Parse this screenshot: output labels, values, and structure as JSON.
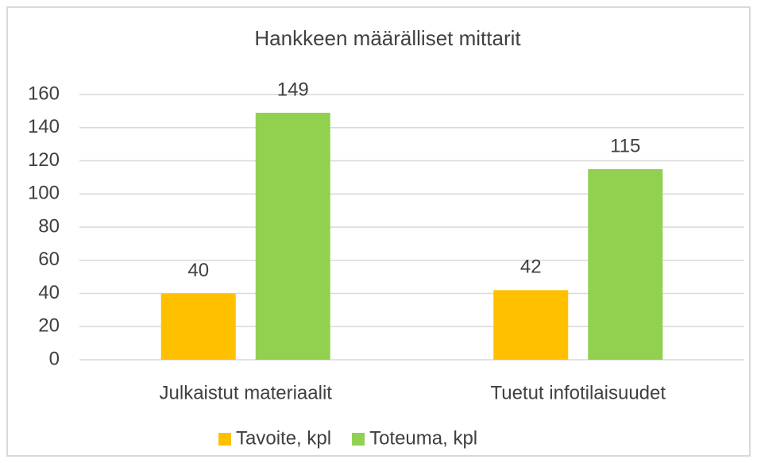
{
  "chart_data": {
    "type": "bar",
    "title": "Hankkeen määrälliset mittarit",
    "categories": [
      "Julkaistut materiaalit",
      "Tuetut infotilaisuudet"
    ],
    "series": [
      {
        "name": "Tavoite, kpl",
        "color": "#FFC000",
        "values": [
          40,
          42
        ]
      },
      {
        "name": "Toteuma, kpl",
        "color": "#92D050",
        "values": [
          149,
          115
        ]
      }
    ],
    "ylim": [
      0,
      160
    ],
    "yticks": [
      0,
      20,
      40,
      60,
      80,
      100,
      120,
      140,
      160
    ],
    "grid": true,
    "legend": "bottom"
  }
}
